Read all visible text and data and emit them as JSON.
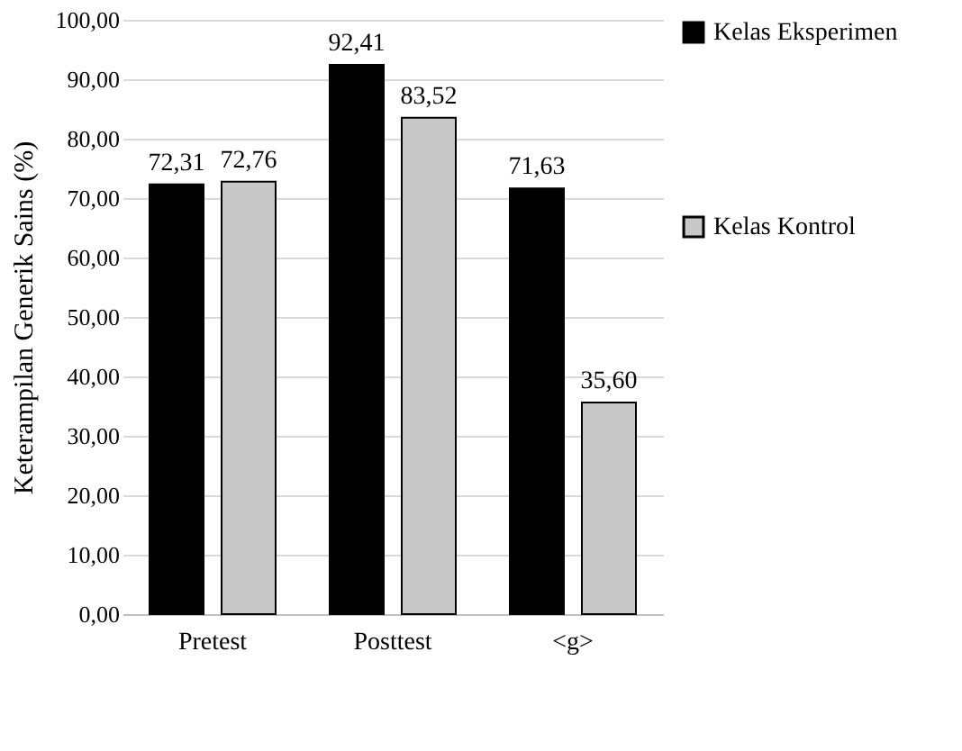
{
  "chart_data": {
    "type": "bar",
    "ylabel": "Keterampilan Generik Sains (%)",
    "categories": [
      "Pretest",
      "Posttest",
      "<g>"
    ],
    "series": [
      {
        "name": "Kelas Eksperimen",
        "color": "#000000",
        "values": [
          72.31,
          92.41,
          71.63
        ],
        "value_labels": [
          "72,31",
          "92,41",
          "71,63"
        ]
      },
      {
        "name": "Kelas Kontrol",
        "color": "#c8c8c8",
        "values": [
          72.76,
          83.52,
          35.6
        ],
        "value_labels": [
          "72,76",
          "83,52",
          "35,60"
        ]
      }
    ],
    "ylim": [
      0,
      100
    ],
    "yticks": [
      {
        "value": 0,
        "label": "0,00"
      },
      {
        "value": 10,
        "label": "10,00"
      },
      {
        "value": 20,
        "label": "20,00"
      },
      {
        "value": 30,
        "label": "30,00"
      },
      {
        "value": 40,
        "label": "40,00"
      },
      {
        "value": 50,
        "label": "50,00"
      },
      {
        "value": 60,
        "label": "60,00"
      },
      {
        "value": 70,
        "label": "70,00"
      },
      {
        "value": 80,
        "label": "80,00"
      },
      {
        "value": 90,
        "label": "90,00"
      },
      {
        "value": 100,
        "label": "100,00"
      }
    ],
    "grid": "y",
    "legend": "right"
  }
}
